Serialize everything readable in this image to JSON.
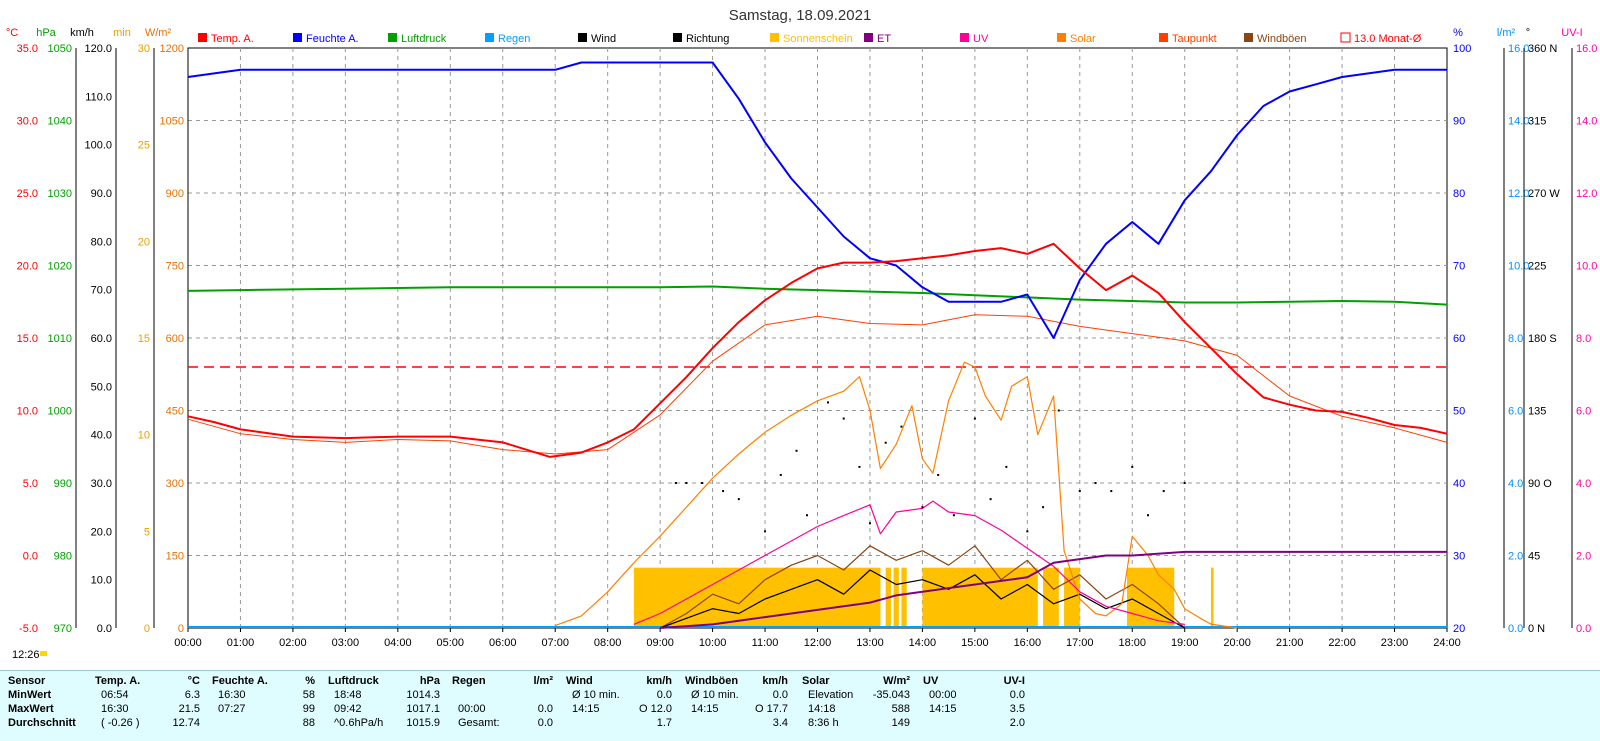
{
  "title": "Samstag, 18.09.2021",
  "left_axes": [
    {
      "unit": "°C",
      "color": "#ff0000",
      "ticks": [
        "35.0",
        "30.0",
        "25.0",
        "20.0",
        "15.0",
        "10.0",
        "5.0",
        "0.0",
        "-5.0"
      ]
    },
    {
      "unit": "hPa",
      "color": "#00a000",
      "ticks": [
        "1050",
        "1040",
        "1030",
        "1020",
        "1010",
        "1000",
        "990",
        "980",
        "970"
      ]
    },
    {
      "unit": "km/h",
      "color": "#000000",
      "ticks": [
        "120.0",
        "110.0",
        "100.0",
        "90.0",
        "80.0",
        "70.0",
        "60.0",
        "50.0",
        "40.0",
        "30.0",
        "20.0",
        "10.0",
        "0.0"
      ]
    },
    {
      "unit": "min",
      "color": "#e8a000",
      "ticks": [
        "30",
        "25",
        "20",
        "15",
        "10",
        "5",
        "0"
      ]
    },
    {
      "unit": "W/m²",
      "color": "#e87000",
      "ticks": [
        "1200",
        "1050",
        "900",
        "750",
        "600",
        "450",
        "300",
        "150",
        "0"
      ]
    }
  ],
  "right_axes": [
    {
      "unit": "%",
      "color": "#0000ff",
      "ticks": [
        "100",
        "90",
        "80",
        "70",
        "60",
        "50",
        "40",
        "30",
        "20"
      ]
    },
    {
      "unit": "l/m²",
      "color": "#0090ff",
      "ticks": [
        "16.0",
        "14.0",
        "12.0",
        "10.0",
        "8.0",
        "6.0",
        "4.0",
        "2.0",
        "0.0"
      ]
    },
    {
      "unit": "°",
      "color": "#000000",
      "ticks": [
        "360 N",
        "315",
        "270 W",
        "225",
        "180 S",
        "135",
        "90 O",
        "45",
        "0 N"
      ]
    },
    {
      "unit": "UV-I",
      "color": "#ff00aa",
      "ticks": [
        "16.0",
        "14.0",
        "12.0",
        "10.0",
        "8.0",
        "6.0",
        "4.0",
        "2.0",
        "0.0"
      ]
    }
  ],
  "legend": [
    {
      "label": "Temp. A.",
      "color": "#ff0000"
    },
    {
      "label": "Feuchte A.",
      "color": "#0000ff"
    },
    {
      "label": "Luftdruck",
      "color": "#00a000"
    },
    {
      "label": "Regen",
      "color": "#00a0ff"
    },
    {
      "label": "Wind",
      "color": "#000000"
    },
    {
      "label": "Richtung",
      "color": "#000000"
    },
    {
      "label": "Sonnenschein",
      "color": "#ffc000"
    },
    {
      "label": "ET",
      "color": "#800080"
    },
    {
      "label": "UV",
      "color": "#ff0099"
    },
    {
      "label": "Solar",
      "color": "#ff8000"
    },
    {
      "label": "Taupunkt",
      "color": "#ff4000"
    },
    {
      "label": "Windböen",
      "color": "#8b4513"
    },
    {
      "label": "13.0 Monat-Ø",
      "color": "#ff0000",
      "dashed": true
    }
  ],
  "current_time": "12:26",
  "chart_data": {
    "type": "line",
    "x_ticks": [
      "00:00",
      "01:00",
      "02:00",
      "03:00",
      "04:00",
      "05:00",
      "06:00",
      "07:00",
      "08:00",
      "09:00",
      "10:00",
      "11:00",
      "12:00",
      "13:00",
      "14:00",
      "15:00",
      "16:00",
      "17:00",
      "18:00",
      "19:00",
      "20:00",
      "21:00",
      "22:00",
      "23:00",
      "24:00"
    ],
    "month_avg_temp": 13.0,
    "series": [
      {
        "name": "Temp. A.",
        "unit": "°C",
        "color": "#ff0000",
        "x": [
          0,
          0.5,
          1,
          2,
          3,
          4,
          5,
          6,
          6.9,
          7.5,
          8,
          8.5,
          9,
          9.5,
          10,
          10.5,
          11,
          11.5,
          12,
          12.5,
          13,
          13.5,
          14,
          14.5,
          15,
          15.5,
          16,
          16.5,
          17,
          17.5,
          18,
          18.5,
          19,
          19.5,
          20,
          20.5,
          21,
          21.5,
          22,
          22.5,
          23,
          23.5,
          24
        ],
        "y": [
          9.6,
          9.2,
          8.7,
          8.2,
          8.1,
          8.2,
          8.2,
          7.8,
          6.8,
          7.1,
          7.8,
          8.7,
          10.5,
          12.3,
          14.3,
          16.1,
          17.6,
          18.8,
          19.8,
          20.2,
          20.2,
          20.3,
          20.5,
          20.7,
          21.0,
          21.2,
          20.8,
          21.5,
          19.8,
          18.3,
          19.3,
          18.1,
          16.1,
          14.3,
          12.5,
          10.9,
          10.4,
          10.0,
          9.9,
          9.5,
          9.0,
          8.8,
          8.4
        ]
      },
      {
        "name": "Feuchte A.",
        "unit": "%",
        "color": "#0000ff",
        "x": [
          0,
          0.5,
          1,
          2,
          3,
          4,
          5,
          6,
          7,
          7.5,
          8,
          9,
          10,
          10.5,
          11,
          11.5,
          12,
          12.5,
          13,
          13.5,
          14,
          14.5,
          15,
          15.5,
          16,
          16.5,
          17,
          17.5,
          18,
          18.5,
          19,
          19.5,
          20,
          20.5,
          21,
          21.5,
          22,
          22.5,
          23,
          23.5,
          24
        ],
        "y": [
          96,
          96.5,
          97,
          97,
          97,
          97,
          97,
          97,
          97,
          98,
          98,
          98,
          98,
          93,
          87,
          82,
          78,
          74,
          71,
          70,
          67,
          65,
          65,
          65,
          66,
          60,
          68,
          73,
          76,
          73,
          79,
          83,
          88,
          92,
          94,
          95,
          96,
          96.5,
          97,
          97,
          97
        ]
      },
      {
        "name": "Luftdruck",
        "unit": "hPa",
        "color": "#00a000",
        "x": [
          0,
          1,
          2,
          3,
          4,
          5,
          6,
          7,
          8,
          9,
          10,
          11,
          12,
          13,
          14,
          15,
          16,
          17,
          18,
          19,
          20,
          21,
          22,
          23,
          24
        ],
        "y": [
          1016.5,
          1016.6,
          1016.7,
          1016.8,
          1016.9,
          1017.0,
          1017.0,
          1017.0,
          1017.0,
          1017.0,
          1017.1,
          1016.8,
          1016.6,
          1016.4,
          1016.2,
          1015.9,
          1015.6,
          1015.3,
          1015.1,
          1014.9,
          1014.9,
          1015.0,
          1015.1,
          1015.0,
          1014.6
        ]
      },
      {
        "name": "Solar",
        "unit": "W/m²",
        "color": "#ff8000",
        "x": [
          7,
          7.5,
          8,
          8.5,
          9,
          9.5,
          10,
          10.5,
          11,
          11.5,
          12,
          12.5,
          12.8,
          13,
          13.2,
          13.5,
          13.8,
          14,
          14.2,
          14.5,
          14.8,
          15,
          15.2,
          15.5,
          15.7,
          16,
          16.2,
          16.5,
          16.7,
          17,
          17.3,
          17.5,
          17.8,
          18,
          18.3,
          18.5,
          18.8,
          19,
          19.3,
          19.5,
          20
        ],
        "y": [
          5,
          25,
          75,
          135,
          190,
          250,
          310,
          360,
          405,
          440,
          470,
          490,
          520,
          450,
          330,
          380,
          460,
          350,
          320,
          470,
          550,
          540,
          480,
          430,
          500,
          520,
          400,
          480,
          160,
          60,
          30,
          25,
          50,
          190,
          150,
          110,
          80,
          40,
          20,
          8,
          0
        ]
      },
      {
        "name": "Taupunkt",
        "unit": "°C",
        "color": "#ff4000",
        "x": [
          0,
          1,
          2,
          3,
          4,
          5,
          6,
          7,
          8,
          9,
          10,
          11,
          12,
          13,
          14,
          15,
          16,
          17,
          18,
          19,
          20,
          21,
          22,
          23,
          24
        ],
        "y": [
          9.4,
          8.4,
          8.0,
          7.8,
          8.0,
          7.9,
          7.3,
          7.0,
          7.3,
          9.7,
          13.4,
          15.9,
          16.5,
          16.0,
          15.9,
          16.6,
          16.5,
          15.8,
          15.3,
          14.8,
          13.8,
          11.0,
          9.6,
          8.8,
          7.8
        ]
      },
      {
        "name": "UV",
        "unit": "UV-I",
        "color": "#ff0099",
        "x": [
          8.5,
          9,
          9.5,
          10,
          10.5,
          11,
          11.5,
          12,
          12.5,
          13,
          13.2,
          13.5,
          14,
          14.2,
          14.5,
          15,
          15.5,
          16,
          16.5,
          17,
          17.5,
          18,
          18.5,
          19
        ],
        "y": [
          0.1,
          0.4,
          0.8,
          1.2,
          1.6,
          2.0,
          2.4,
          2.8,
          3.1,
          3.4,
          2.6,
          3.2,
          3.3,
          3.5,
          3.2,
          3.1,
          2.7,
          2.2,
          1.7,
          1.0,
          0.6,
          0.4,
          0.2,
          0.1
        ]
      },
      {
        "name": "ET",
        "unit": "l/m²",
        "color": "#800080",
        "x": [
          9,
          10,
          10.5,
          11,
          11.5,
          12,
          12.5,
          13,
          13.5,
          14,
          14.5,
          15,
          15.5,
          16,
          16.5,
          17,
          17.5,
          18,
          19,
          20,
          21,
          22,
          23,
          24
        ],
        "y": [
          0.0,
          0.1,
          0.2,
          0.3,
          0.4,
          0.5,
          0.6,
          0.7,
          0.9,
          1.0,
          1.1,
          1.2,
          1.3,
          1.4,
          1.8,
          1.9,
          2.0,
          2.0,
          2.1,
          2.1,
          2.1,
          2.1,
          2.1,
          2.1
        ]
      },
      {
        "name": "Wind",
        "unit": "km/h",
        "color": "#000000",
        "x": [
          9,
          9.5,
          10,
          10.5,
          11,
          11.5,
          12,
          12.5,
          13,
          13.5,
          14,
          14.5,
          15,
          15.5,
          16,
          16.5,
          17,
          17.5,
          18,
          18.5,
          19
        ],
        "y": [
          0,
          2,
          4,
          3,
          6,
          8,
          10,
          7,
          12,
          9,
          10,
          8,
          11,
          6,
          9,
          5,
          7,
          4,
          6,
          3,
          0
        ]
      },
      {
        "name": "Windböen",
        "unit": "km/h",
        "color": "#8b4513",
        "x": [
          9,
          9.5,
          10,
          10.5,
          11,
          11.5,
          12,
          12.5,
          13,
          13.5,
          14,
          14.5,
          15,
          15.5,
          16,
          16.5,
          17,
          17.5,
          18,
          18.5,
          19
        ],
        "y": [
          0,
          3,
          7,
          5,
          10,
          13,
          15,
          12,
          17,
          14,
          16,
          13,
          17,
          10,
          14,
          8,
          11,
          6,
          9,
          5,
          0
        ]
      }
    ],
    "sunshine_blocks": [
      [
        8.5,
        13.2
      ],
      [
        13.3,
        13.4
      ],
      [
        13.45,
        13.55
      ],
      [
        13.6,
        13.7
      ],
      [
        14,
        16.2
      ],
      [
        16.3,
        16.6
      ],
      [
        16.7,
        17
      ],
      [
        17.9,
        18.8
      ],
      [
        19.5,
        19.55
      ]
    ],
    "wind_direction": {
      "x": [
        9.3,
        9.5,
        9.8,
        10.2,
        10.5,
        11,
        11.3,
        11.6,
        11.8,
        12.2,
        12.5,
        12.8,
        13,
        13.3,
        13.6,
        14,
        14.3,
        14.6,
        15,
        15.3,
        15.6,
        16,
        16.3,
        16.6,
        17,
        17.3,
        17.6,
        18,
        18.3,
        18.6,
        19
      ],
      "y": [
        90,
        90,
        90,
        85,
        80,
        60,
        95,
        110,
        70,
        140,
        130,
        100,
        65,
        115,
        125,
        75,
        95,
        70,
        130,
        80,
        100,
        60,
        75,
        135,
        85,
        90,
        85,
        100,
        70,
        85,
        90
      ]
    }
  },
  "stats": {
    "headers": [
      {
        "title": "Sensor",
        "unit": ""
      },
      {
        "title": "Temp. A.",
        "unit": "°C"
      },
      {
        "title": "Feuchte A.",
        "unit": "%"
      },
      {
        "title": "Luftdruck",
        "unit": "hPa"
      },
      {
        "title": "Regen",
        "unit": "l/m²"
      },
      {
        "title": "Wind",
        "unit": "km/h"
      },
      {
        "title": "Windböen",
        "unit": "km/h"
      },
      {
        "title": "Solar",
        "unit": "W/m²"
      },
      {
        "title": "UV",
        "unit": "UV-I"
      }
    ],
    "row_labels": [
      "MinWert",
      "MaxWert",
      "Durchschnitt"
    ],
    "temp": [
      [
        "06:54",
        "6.3"
      ],
      [
        "16:30",
        "21.5"
      ],
      [
        "( -0.26 )",
        "12.74"
      ]
    ],
    "humidity": [
      [
        "16:30",
        "58"
      ],
      [
        "07:27",
        "99"
      ],
      [
        "",
        "88"
      ]
    ],
    "pressure": [
      [
        "18:48",
        "1014.3"
      ],
      [
        "09:42",
        "1017.1"
      ],
      [
        "^0.6hPa/h",
        "1015.9"
      ]
    ],
    "rain": [
      [
        "",
        ""
      ],
      [
        "00:00",
        "0.0"
      ],
      [
        "Gesamt:",
        "0.0"
      ]
    ],
    "wind": [
      [
        "Ø 10 min.",
        "0.0"
      ],
      [
        "14:15",
        "O 12.0"
      ],
      [
        "",
        "1.7"
      ]
    ],
    "gusts": [
      [
        "Ø 10 min.",
        "0.0"
      ],
      [
        "14:15",
        "O 17.7"
      ],
      [
        "",
        "3.4"
      ]
    ],
    "solar": [
      [
        "Elevation",
        "-35.043"
      ],
      [
        "14:18",
        "588"
      ],
      [
        "8:36 h",
        "149"
      ]
    ],
    "uv": [
      [
        "00:00",
        "0.0"
      ],
      [
        "14:15",
        "3.5"
      ],
      [
        "",
        "2.0"
      ]
    ]
  }
}
